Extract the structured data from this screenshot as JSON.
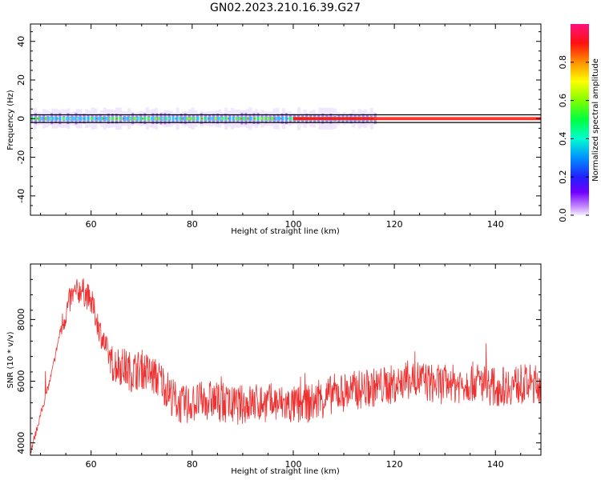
{
  "title": "GN02.2023.210.16.39.G27",
  "colors": {
    "snr_line": "#f03030",
    "axis": "#000000"
  },
  "chart_data": [
    {
      "type": "heatmap",
      "xlabel": "Height of straight line (km)",
      "ylabel": "Frequency (Hz)",
      "xlim": [
        48,
        149
      ],
      "ylim": [
        -50,
        49
      ],
      "xticks": [
        60,
        80,
        100,
        120,
        140
      ],
      "yticks": [
        40,
        20,
        0,
        -20,
        -40
      ],
      "colorbar": {
        "label": "Normalized spectral amplitude",
        "range": [
          0,
          1
        ],
        "ticks": [
          "0.0",
          "0.2",
          "0.4",
          "0.6",
          "0.8"
        ],
        "colormap": "rainbow (violet → blue → cyan → green → yellow → red → magenta)"
      },
      "description_values": {
        "signal_band_center_hz": 0,
        "signal_band_halfwidth_hz": 2,
        "noisy_region_km": [
          48,
          116
        ],
        "clean_region_km": [
          116,
          149
        ]
      }
    },
    {
      "type": "line",
      "xlabel": "Height of straight line (km)",
      "ylabel": "SNR (10 * v/v)",
      "xlim": [
        48,
        149
      ],
      "ylim": [
        3600,
        9800
      ],
      "xticks": [
        60,
        80,
        100,
        120,
        140
      ],
      "yticks": [
        4000,
        6000,
        8000
      ],
      "series": [
        {
          "trend_x": [
            48,
            50,
            52,
            54,
            56,
            58,
            60,
            62,
            64,
            66,
            68,
            70,
            72,
            74,
            76,
            78,
            80,
            84,
            88,
            92,
            96,
            100,
            104,
            108,
            112,
            116,
            120,
            124,
            128,
            132,
            136,
            140,
            144,
            149
          ],
          "trend_y": [
            3700,
            4900,
            6100,
            7700,
            8700,
            9000,
            8600,
            7500,
            6600,
            6500,
            6300,
            6400,
            6200,
            6000,
            5500,
            5200,
            5300,
            5400,
            5200,
            5300,
            5300,
            5200,
            5300,
            5600,
            5700,
            5800,
            5900,
            6100,
            5900,
            5900,
            6000,
            5800,
            5900,
            5900
          ]
        }
      ]
    }
  ]
}
